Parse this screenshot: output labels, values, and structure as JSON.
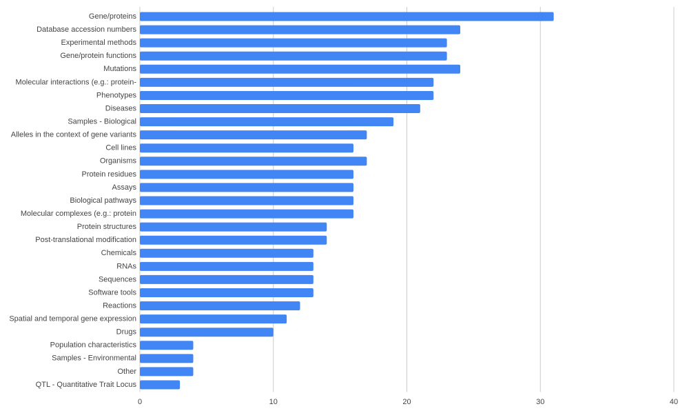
{
  "chart_data": {
    "type": "bar",
    "orientation": "horizontal",
    "categories": [
      "Gene/proteins",
      "Database accession numbers",
      "Experimental methods",
      "Gene/protein functions",
      "Mutations",
      "Molecular interactions (e.g.: protein-",
      "Phenotypes",
      "Diseases",
      "Samples - Biological",
      "Alleles in the context of gene variants",
      "Cell lines",
      "Organisms",
      "Protein residues",
      "Assays",
      "Biological pathways",
      "Molecular complexes (e.g.: protein",
      "Protein structures",
      "Post-translational modification",
      "Chemicals",
      "RNAs",
      "Sequences",
      "Software tools",
      "Reactions",
      "Spatial and temporal gene expression",
      "Drugs",
      "Population characteristics",
      "Samples - Environmental",
      "Other",
      "QTL - Quantitative Trait Locus"
    ],
    "values": [
      31,
      24,
      23,
      23,
      24,
      22,
      22,
      21,
      19,
      17,
      16,
      17,
      16,
      16,
      16,
      16,
      14,
      14,
      13,
      13,
      13,
      13,
      12,
      11,
      10,
      4,
      4,
      4,
      3
    ],
    "color": "#4285f4",
    "xlim": [
      0,
      40
    ],
    "xticks": [
      0,
      10,
      20,
      30,
      40
    ],
    "grid": true
  }
}
